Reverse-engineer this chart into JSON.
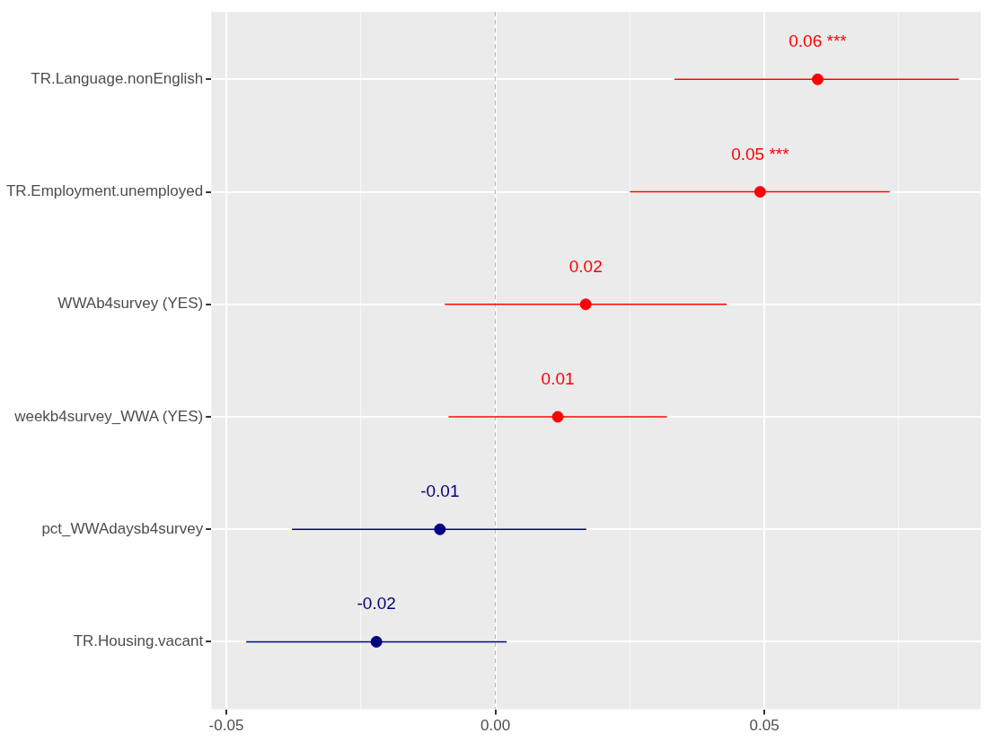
{
  "chart_data": {
    "type": "scatter",
    "orientation": "horizontal",
    "categories": [
      "TR.Language.nonEnglish",
      "TR.Employment.unemployed",
      "WWAb4survey (YES)",
      "weekb4survey_WWA (YES)",
      "pct_WWAdaysb4survey",
      "TR.Housing.vacant"
    ],
    "values": [
      0.0599,
      0.0492,
      0.0168,
      0.0116,
      -0.0103,
      -0.0221
    ],
    "colors": [
      "#ff0000",
      "#ff0000",
      "#ff0000",
      "#ff0000",
      "#000080",
      "#000080"
    ],
    "errors": [
      [
        0.0333,
        0.0861
      ],
      [
        0.025,
        0.0733
      ],
      [
        -0.0094,
        0.043
      ],
      [
        -0.0087,
        0.0319
      ],
      [
        -0.0378,
        0.0169
      ],
      [
        -0.0463,
        0.0021
      ]
    ],
    "value_labels": [
      "0.06 ***",
      "0.05 ***",
      "0.02",
      "0.01",
      "-0.01",
      "-0.02"
    ],
    "xlim": [
      -0.0528,
      0.0902
    ],
    "xticks": [
      {
        "value": -0.05,
        "label": "-0.05"
      },
      {
        "value": -0.025,
        "label": null
      },
      {
        "value": 0,
        "label": "0.00"
      },
      {
        "value": 0.025,
        "label": null
      },
      {
        "value": 0.05,
        "label": "0.05"
      },
      {
        "value": 0.075,
        "label": null
      }
    ],
    "grid": true,
    "marker": "circle",
    "ref_lines": [
      {
        "axis": "x",
        "value": 0,
        "color": "#b3b3b3",
        "line_style": "dashed"
      }
    ]
  }
}
